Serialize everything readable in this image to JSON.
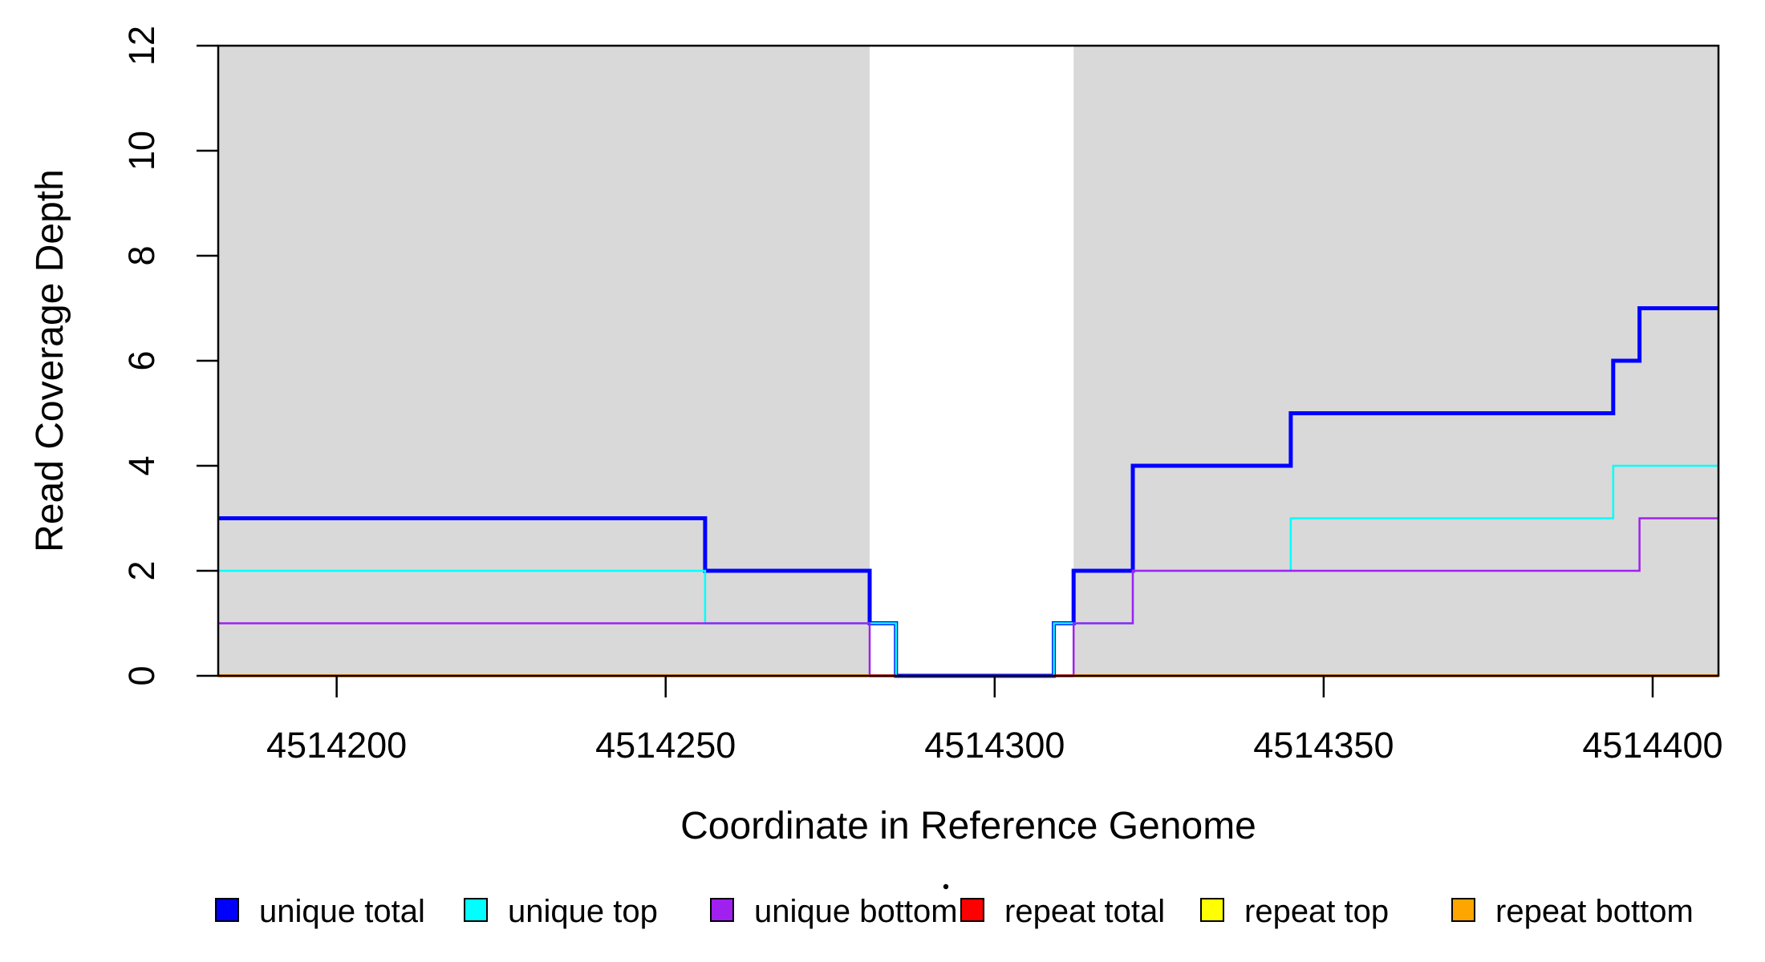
{
  "chart_data": {
    "type": "line",
    "subtype": "step-coverage",
    "title": "",
    "xlabel": "Coordinate in Reference Genome",
    "ylabel": "Read Coverage Depth",
    "x_range": [
      4514182,
      4514410
    ],
    "y_range": [
      0,
      12
    ],
    "x_ticks": [
      4514200,
      4514250,
      4514300,
      4514350,
      4514400
    ],
    "x_tick_labels": [
      "4514200",
      "4514250",
      "4514300",
      "4514350",
      "4514400"
    ],
    "y_ticks": [
      0,
      2,
      4,
      6,
      8,
      10,
      12
    ],
    "y_tick_labels": [
      "0",
      "2",
      "4",
      "6",
      "8",
      "10",
      "12"
    ],
    "grid": false,
    "frame_color": "#000000",
    "background_color": "#ffffff",
    "shaded_regions": [
      {
        "name": "repeat-region-left",
        "x1": 4514182,
        "x2": 4514281,
        "color": "#d9d9d9"
      },
      {
        "name": "repeat-region-right",
        "x1": 4514312,
        "x2": 4514410,
        "color": "#d9d9d9"
      }
    ],
    "series": [
      {
        "name": "unique total",
        "color": "#0000ff",
        "line_width": 5,
        "segments": [
          {
            "points": [
              [
                4514182,
                3
              ],
              [
                4514256,
                2
              ],
              [
                4514281,
                1
              ],
              [
                4514285,
                0
              ],
              [
                4514309,
                1
              ],
              [
                4514312,
                2
              ],
              [
                4514321,
                4
              ],
              [
                4514345,
                5
              ],
              [
                4514394,
                6
              ],
              [
                4514398,
                7
              ]
            ],
            "x_end": 4514410
          }
        ]
      },
      {
        "name": "unique top",
        "color": "#00ffff",
        "line_width": 2.5,
        "segments": [
          {
            "points": [
              [
                4514182,
                2
              ],
              [
                4514256,
                1
              ],
              [
                4514285,
                0
              ],
              [
                4514309,
                1
              ],
              [
                4514321,
                2
              ],
              [
                4514345,
                3
              ],
              [
                4514394,
                4
              ]
            ],
            "x_end": 4514410
          }
        ]
      },
      {
        "name": "unique bottom",
        "color": "#a020f0",
        "line_width": 2.5,
        "segments": [
          {
            "points": [
              [
                4514182,
                1
              ],
              [
                4514281,
                0
              ],
              [
                4514312,
                1
              ],
              [
                4514321,
                2
              ],
              [
                4514398,
                3
              ]
            ],
            "x_end": 4514410
          }
        ]
      },
      {
        "name": "repeat total",
        "color": "#ff0000",
        "line_width": 3.5,
        "segments": [
          {
            "points": [
              [
                4514182,
                0
              ]
            ],
            "x_end": 4514285
          },
          {
            "points": [
              [
                4514309,
                0
              ]
            ],
            "x_end": 4514410
          }
        ]
      },
      {
        "name": "repeat top",
        "color": "#ffff00",
        "line_width": 2.5,
        "segments": [
          {
            "points": [
              [
                4514182,
                0
              ]
            ],
            "x_end": 4514281
          },
          {
            "points": [
              [
                4514312,
                0
              ]
            ],
            "x_end": 4514410
          }
        ]
      },
      {
        "name": "repeat bottom",
        "color": "#ffa500",
        "line_width": 3.5,
        "segments": [
          {
            "points": [
              [
                4514182,
                0
              ]
            ],
            "x_end": 4514281
          },
          {
            "points": [
              [
                4514312,
                0
              ]
            ],
            "x_end": 4514410
          }
        ]
      }
    ],
    "legend": {
      "position": "bottom",
      "entries": [
        {
          "label": "unique total",
          "color": "#0000ff"
        },
        {
          "label": "unique top",
          "color": "#00ffff"
        },
        {
          "label": "unique bottom",
          "color": "#a020f0"
        },
        {
          "label": "repeat total",
          "color": "#ff0000"
        },
        {
          "label": "repeat top",
          "color": "#ffff00"
        },
        {
          "label": "repeat bottom",
          "color": "#ffa500"
        }
      ]
    },
    "annotations": [
      {
        "name": "stray-dot",
        "shape": "dot",
        "color": "#000000"
      }
    ]
  }
}
